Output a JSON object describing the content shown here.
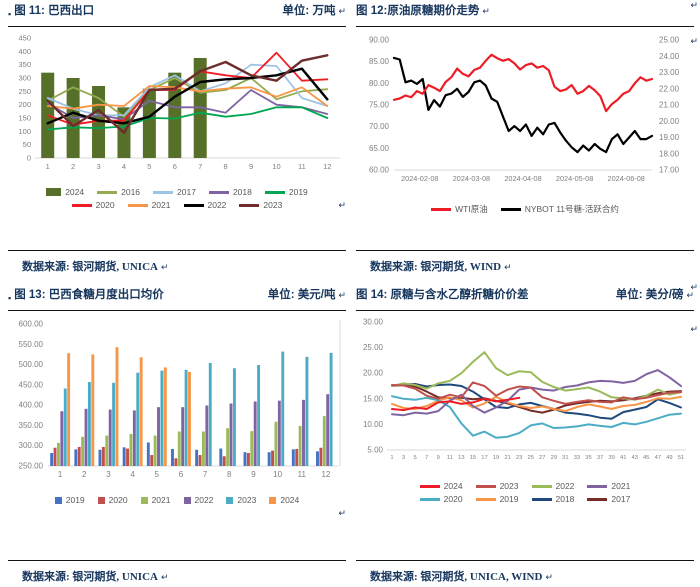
{
  "glyphs": {
    "return_mark": "↵",
    "bullet": "▪"
  },
  "chart_data": [
    {
      "figure": "图 11",
      "title": "图 11: 巴西出口",
      "unit": "单位: 万吨",
      "source": "数据来源: 银河期货, UNICA",
      "type": "combo_bar_line",
      "xlabel": "",
      "ylabel": "",
      "categories": [
        "1",
        "2",
        "3",
        "4",
        "5",
        "6",
        "7",
        "8",
        "9",
        "10",
        "11",
        "12"
      ],
      "ylim": [
        0,
        450
      ],
      "yticks": [
        "450",
        "400",
        "350",
        "300",
        "250",
        "200",
        "150",
        "100",
        "50",
        "0"
      ],
      "bar_series": {
        "name": "2024",
        "color": "#567029",
        "values": [
          320,
          300,
          270,
          190,
          260,
          320,
          375
        ]
      },
      "line_series": [
        {
          "name": "2016",
          "color": "#94ab4f",
          "values": [
            215,
            265,
            225,
            155,
            255,
            300,
            245,
            255,
            300,
            220,
            250,
            258
          ]
        },
        {
          "name": "2017",
          "color": "#9dc3e6",
          "values": [
            225,
            185,
            160,
            160,
            265,
            310,
            250,
            280,
            350,
            345,
            225,
            195
          ]
        },
        {
          "name": "2018",
          "color": "#7e64a0",
          "values": [
            205,
            150,
            160,
            145,
            215,
            190,
            190,
            170,
            255,
            200,
            190,
            165
          ]
        },
        {
          "name": "2019",
          "color": "#00a651",
          "values": [
            107,
            115,
            112,
            118,
            150,
            148,
            170,
            155,
            165,
            190,
            190,
            150
          ]
        },
        {
          "name": "2020",
          "color": "#ee1c25",
          "values": [
            160,
            125,
            140,
            140,
            255,
            255,
            325,
            310,
            300,
            395,
            290,
            295
          ]
        },
        {
          "name": "2021",
          "color": "#f79646",
          "values": [
            195,
            185,
            200,
            195,
            270,
            265,
            250,
            260,
            265,
            230,
            265,
            195
          ]
        },
        {
          "name": "2022",
          "color": "#000000",
          "values": [
            130,
            170,
            140,
            130,
            155,
            230,
            285,
            295,
            300,
            310,
            335,
            220
          ]
        },
        {
          "name": "2023",
          "color": "#6e2c2c",
          "values": [
            215,
            120,
            180,
            95,
            255,
            260,
            325,
            360,
            310,
            290,
            365,
            385
          ]
        }
      ],
      "legend_rows": [
        [
          "2024",
          "2016",
          "2017",
          "2018",
          "2019"
        ],
        [
          "2020",
          "2021",
          "2022",
          "2023"
        ]
      ],
      "legend_swatch": "line"
    },
    {
      "figure": "图 12",
      "title": "图 12:原油原糖期价走势",
      "unit": "",
      "source": "数据来源: 银河期货, WIND",
      "type": "dual_axis_line",
      "x_labels": [
        "2024-02-08",
        "2024-03-08",
        "2024-04-08",
        "2024-05-08",
        "2024-06-08"
      ],
      "ylim_left": [
        60,
        90
      ],
      "ylim_right": [
        17,
        25
      ],
      "yticks_left": [
        "90.00",
        "85.00",
        "80.00",
        "75.00",
        "70.00",
        "65.00",
        "60.00"
      ],
      "yticks_right": [
        "25.00",
        "24.00",
        "23.00",
        "22.00",
        "21.00",
        "20.00",
        "19.00",
        "18.00",
        "17.00"
      ],
      "series": [
        {
          "name": "WTI原油",
          "color": "#ee1c25",
          "axis": "left",
          "values": [
            76.2,
            76.5,
            77.2,
            76.8,
            78.2,
            77.6,
            79.6,
            79.0,
            78.2,
            80.3,
            81.4,
            83.4,
            82.2,
            81.6,
            83.1,
            83.6,
            85.2,
            86.6,
            85.8,
            85.2,
            85.6,
            84.6,
            83.2,
            84.2,
            84.6,
            83.6,
            84.0,
            83.0,
            79.2,
            78.2,
            78.6,
            79.6,
            77.6,
            78.2,
            79.4,
            78.4,
            77.0,
            73.6,
            75.2,
            76.2,
            77.6,
            78.2,
            80.0,
            81.4,
            80.6,
            81.0
          ]
        },
        {
          "name": "NYBOT 11号糖-活跃合约",
          "color": "#000000",
          "axis": "right",
          "values": [
            23.9,
            23.8,
            22.4,
            22.5,
            22.3,
            22.6,
            20.7,
            21.3,
            20.9,
            21.6,
            21.7,
            22.0,
            21.5,
            21.8,
            22.4,
            22.5,
            22.2,
            21.4,
            21.2,
            20.3,
            19.4,
            19.7,
            19.4,
            19.8,
            19.1,
            19.6,
            19.2,
            19.8,
            19.9,
            19.3,
            18.8,
            18.4,
            18.1,
            18.5,
            18.2,
            18.6,
            18.3,
            18.1,
            18.9,
            19.2,
            18.6,
            19.0,
            19.4,
            18.9,
            18.9,
            19.1
          ]
        }
      ],
      "legend_rows": [
        [
          "WTI原油",
          "NYBOT 11号糖-活跃合约"
        ]
      ],
      "legend_swatch": "line"
    },
    {
      "figure": "图 13",
      "title": "图 13: 巴西食糖月度出口均价",
      "unit": "单位: 美元/吨",
      "source": "数据来源: 银河期货, UNICA",
      "type": "grouped_bar",
      "categories": [
        "1",
        "2",
        "3",
        "4",
        "5",
        "6",
        "7",
        "8",
        "9",
        "10",
        "11",
        "12"
      ],
      "ylim": [
        250,
        600
      ],
      "yticks": [
        "600.00",
        "550.00",
        "500.00",
        "450.00",
        "400.00",
        "350.00",
        "300.00",
        "250.00"
      ],
      "series": [
        {
          "name": "2019",
          "color": "#4472c4",
          "values": [
            282,
            291,
            290,
            296,
            308,
            292,
            290,
            293,
            284,
            284,
            291,
            286
          ]
        },
        {
          "name": "2020",
          "color": "#c0504d",
          "values": [
            295,
            297,
            297,
            293,
            277,
            269,
            277,
            274,
            282,
            288,
            292,
            295
          ]
        },
        {
          "name": "2021",
          "color": "#9bbb59",
          "values": [
            307,
            322,
            325,
            329,
            325,
            335,
            335,
            343,
            336,
            359,
            349,
            373
          ]
        },
        {
          "name": "2022",
          "color": "#8064a2",
          "values": [
            385,
            391,
            389,
            387,
            395,
            395,
            399,
            404,
            409,
            411,
            413,
            427
          ]
        },
        {
          "name": "2023",
          "color": "#4bacc6",
          "values": [
            441,
            457,
            455,
            480,
            485,
            487,
            504,
            491,
            499,
            532,
            519,
            529
          ]
        },
        {
          "name": "2024",
          "color": "#f79646",
          "values": [
            528,
            525,
            543,
            518,
            493,
            482
          ]
        }
      ],
      "legend_rows": [
        [
          "2019",
          "2020",
          "2021",
          "2022",
          "2023",
          "2024"
        ]
      ],
      "legend_swatch": "square"
    },
    {
      "figure": "图 14",
      "title": "图 14: 原糖与含水乙醇折糖价价差",
      "unit": "单位: 美分/磅",
      "source": "数据来源: 银河期货, UNICA, WIND",
      "type": "multi_line",
      "x_labels": [
        "1",
        "3",
        "5",
        "7",
        "9",
        "11",
        "13",
        "15",
        "17",
        "19",
        "21",
        "23",
        "25",
        "27",
        "29",
        "31",
        "33",
        "35",
        "37",
        "39",
        "41",
        "43",
        "45",
        "47",
        "49",
        "51"
      ],
      "ylim": [
        5,
        30
      ],
      "yticks": [
        "30.00",
        "25.00",
        "20.00",
        "15.00",
        "10.00",
        "5.00"
      ],
      "series": [
        {
          "name": "2024",
          "color": "#ee1c25",
          "values": [
            13.0,
            12.8,
            13.3,
            13.0,
            14.3,
            14.5,
            14.0,
            14.3,
            15.0,
            14.5,
            14.8,
            15.2
          ]
        },
        {
          "name": "2023",
          "color": "#c0504d",
          "values": [
            17.7,
            17.6,
            17.0,
            15.6,
            15.0,
            15.8,
            15.3,
            18.2,
            17.5,
            15.6,
            16.8,
            17.4,
            17.2,
            15.3,
            14.6,
            14.0,
            14.4,
            14.7,
            14.4,
            14.3,
            15.3,
            14.9,
            15.2,
            15.7,
            16.2,
            16.3
          ]
        },
        {
          "name": "2022",
          "color": "#9bbb59",
          "values": [
            17.5,
            18.0,
            17.7,
            17.0,
            18.0,
            18.5,
            20.0,
            22.2,
            24.1,
            21.0,
            19.6,
            20.4,
            20.2,
            18.3,
            17.3,
            16.6,
            16.9,
            17.2,
            16.4,
            15.3,
            15.1,
            14.8,
            15.6,
            16.8,
            15.8,
            16.3
          ]
        },
        {
          "name": "2021",
          "color": "#8064a2",
          "values": [
            12.0,
            11.8,
            12.3,
            12.1,
            12.6,
            14.6,
            15.8,
            13.6,
            12.3,
            13.3,
            14.6,
            16.8,
            17.2,
            16.8,
            16.6,
            17.3,
            17.6,
            18.2,
            18.5,
            18.4,
            18.1,
            18.5,
            19.8,
            20.6,
            19.2,
            17.5
          ]
        },
        {
          "name": "2020",
          "color": "#4bacc6",
          "values": [
            15.5,
            15.0,
            14.8,
            15.2,
            14.7,
            13.4,
            10.2,
            7.8,
            8.6,
            7.4,
            7.6,
            8.3,
            9.8,
            10.2,
            9.3,
            9.4,
            9.6,
            10.0,
            9.7,
            9.5,
            10.3,
            10.0,
            10.5,
            11.2,
            11.9,
            12.1
          ]
        },
        {
          "name": "2019",
          "color": "#f79646",
          "values": [
            14.0,
            13.2,
            13.0,
            13.6,
            14.6,
            15.3,
            14.7,
            13.3,
            14.1,
            15.4,
            14.3,
            13.6,
            13.2,
            13.5,
            13.0,
            12.6,
            13.4,
            13.9,
            13.5,
            13.0,
            13.6,
            13.8,
            14.4,
            15.1,
            15.0,
            15.4
          ]
        },
        {
          "name": "2018",
          "color": "#1f497d",
          "values": [
            17.5,
            17.8,
            17.9,
            17.4,
            17.7,
            17.8,
            17.5,
            16.4,
            14.9,
            13.4,
            13.2,
            13.9,
            14.2,
            13.6,
            13.0,
            12.3,
            12.1,
            11.8,
            11.3,
            11.1,
            12.4,
            12.9,
            13.4,
            14.9,
            14.2,
            13.3
          ]
        },
        {
          "name": "2017",
          "color": "#772c2a",
          "values": [
            17.6,
            17.7,
            17.4,
            16.4,
            15.3,
            15.1,
            15.2,
            14.9,
            15.1,
            14.6,
            14.1,
            13.4,
            12.7,
            12.3,
            12.9,
            13.7,
            14.1,
            14.4,
            14.6,
            14.5,
            14.7,
            15.1,
            15.6,
            16.1,
            16.4,
            16.5
          ]
        }
      ],
      "legend_rows": [
        [
          "2024",
          "2023",
          "2022",
          "2021"
        ],
        [
          "2020",
          "2019",
          "2018",
          "2017"
        ]
      ],
      "legend_swatch": "line"
    }
  ]
}
